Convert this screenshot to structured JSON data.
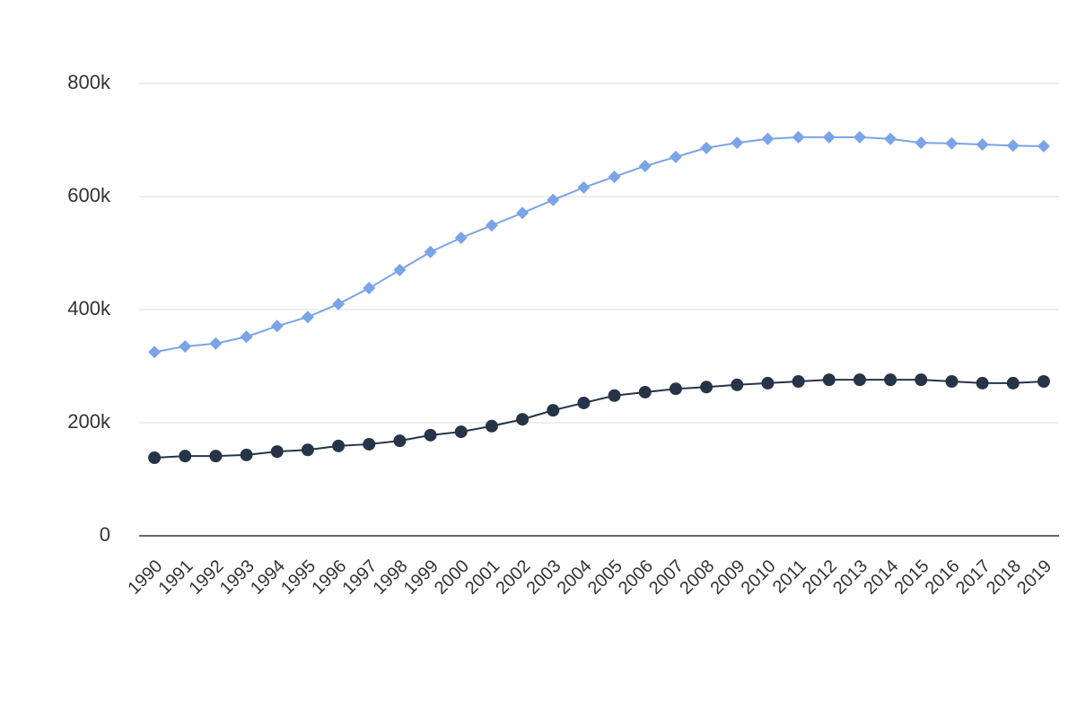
{
  "chart_data": {
    "type": "line",
    "categories": [
      "1990",
      "1991",
      "1992",
      "1993",
      "1994",
      "1995",
      "1996",
      "1997",
      "1998",
      "1999",
      "2000",
      "2001",
      "2002",
      "2003",
      "2004",
      "2005",
      "2006",
      "2007",
      "2008",
      "2009",
      "2010",
      "2011",
      "2012",
      "2013",
      "2014",
      "2015",
      "2016",
      "2017",
      "2018",
      "2019"
    ],
    "series": [
      {
        "color": "#7ba3e8",
        "marker": "diamond",
        "values": [
          325000,
          335000,
          340000,
          352000,
          371000,
          387000,
          410000,
          438000,
          470000,
          502000,
          527000,
          549000,
          571000,
          594000,
          616000,
          635000,
          654000,
          670000,
          686000,
          695000,
          702000,
          705000,
          705000,
          705000,
          702000,
          695000,
          694000,
          692000,
          690000,
          689000
        ]
      },
      {
        "color": "#253447",
        "marker": "circle",
        "values": [
          138000,
          141000,
          141000,
          143000,
          149000,
          152000,
          159000,
          162000,
          168000,
          178000,
          184000,
          194000,
          206000,
          222000,
          235000,
          248000,
          254000,
          260000,
          263000,
          267000,
          270000,
          273000,
          276000,
          276000,
          276000,
          276000,
          273000,
          270000,
          270000,
          273000
        ]
      }
    ],
    "ylim": [
      0,
      800000
    ],
    "yticks": [
      0,
      {
        "value": 200000,
        "label": "200k"
      },
      {
        "value": 400000,
        "label": "400k"
      },
      {
        "value": 600000,
        "label": "600k"
      },
      {
        "value": 800000,
        "label": "800k"
      }
    ],
    "grid": true
  }
}
